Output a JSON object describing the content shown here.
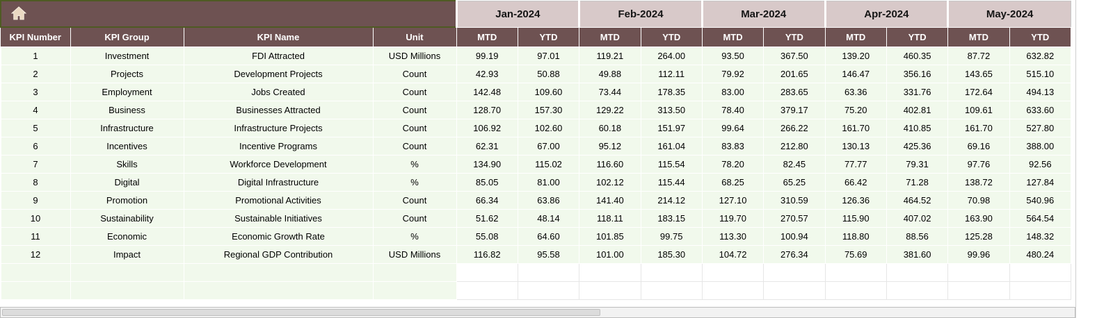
{
  "table": {
    "corner": {
      "icon": "home"
    },
    "column_headers": [
      "KPI Number",
      "KPI Group",
      "KPI Name",
      "Unit"
    ],
    "months": [
      "Jan-2024",
      "Feb-2024",
      "Mar-2024",
      "Apr-2024",
      "May-2024"
    ],
    "period_labels": {
      "mtd": "MTD",
      "ytd": "YTD"
    },
    "rows": [
      {
        "number": "1",
        "group": "Investment",
        "name": "FDI Attracted",
        "unit": "USD Millions",
        "values": [
          "99.19",
          "97.01",
          "119.21",
          "264.00",
          "93.50",
          "367.50",
          "139.20",
          "460.35",
          "87.72",
          "632.82"
        ]
      },
      {
        "number": "2",
        "group": "Projects",
        "name": "Development Projects",
        "unit": "Count",
        "values": [
          "42.93",
          "50.88",
          "49.88",
          "112.11",
          "79.92",
          "201.65",
          "146.47",
          "356.16",
          "143.65",
          "515.10"
        ]
      },
      {
        "number": "3",
        "group": "Employment",
        "name": "Jobs Created",
        "unit": "Count",
        "values": [
          "142.48",
          "109.60",
          "73.44",
          "178.35",
          "83.00",
          "283.65",
          "63.36",
          "331.76",
          "172.64",
          "494.13"
        ]
      },
      {
        "number": "4",
        "group": "Business",
        "name": "Businesses Attracted",
        "unit": "Count",
        "values": [
          "128.70",
          "157.30",
          "129.22",
          "313.50",
          "78.40",
          "379.17",
          "75.20",
          "402.81",
          "109.61",
          "633.60"
        ]
      },
      {
        "number": "5",
        "group": "Infrastructure",
        "name": "Infrastructure Projects",
        "unit": "Count",
        "values": [
          "106.92",
          "102.60",
          "60.18",
          "151.97",
          "99.64",
          "266.22",
          "161.70",
          "410.85",
          "161.70",
          "527.80"
        ]
      },
      {
        "number": "6",
        "group": "Incentives",
        "name": "Incentive Programs",
        "unit": "Count",
        "values": [
          "62.31",
          "67.00",
          "95.12",
          "161.04",
          "83.83",
          "212.80",
          "130.13",
          "425.36",
          "69.16",
          "388.00"
        ]
      },
      {
        "number": "7",
        "group": "Skills",
        "name": "Workforce Development",
        "unit": "%",
        "values": [
          "134.90",
          "115.02",
          "116.60",
          "115.54",
          "78.20",
          "82.45",
          "77.77",
          "79.31",
          "97.76",
          "92.56"
        ]
      },
      {
        "number": "8",
        "group": "Digital",
        "name": "Digital Infrastructure",
        "unit": "%",
        "values": [
          "85.05",
          "81.00",
          "102.12",
          "115.44",
          "68.25",
          "65.25",
          "66.42",
          "71.28",
          "138.72",
          "127.84"
        ]
      },
      {
        "number": "9",
        "group": "Promotion",
        "name": "Promotional Activities",
        "unit": "Count",
        "values": [
          "66.34",
          "63.86",
          "141.40",
          "214.12",
          "127.10",
          "310.59",
          "126.36",
          "464.52",
          "70.98",
          "540.96"
        ]
      },
      {
        "number": "10",
        "group": "Sustainability",
        "name": "Sustainable Initiatives",
        "unit": "Count",
        "values": [
          "51.62",
          "48.14",
          "118.11",
          "183.15",
          "119.70",
          "270.57",
          "115.90",
          "407.02",
          "163.90",
          "564.54"
        ]
      },
      {
        "number": "11",
        "group": "Economic",
        "name": "Economic Growth Rate",
        "unit": "%",
        "values": [
          "55.08",
          "64.60",
          "101.85",
          "99.75",
          "113.30",
          "100.94",
          "118.80",
          "88.56",
          "125.28",
          "148.32"
        ]
      },
      {
        "number": "12",
        "group": "Impact",
        "name": "Regional GDP Contribution",
        "unit": "USD Millions",
        "values": [
          "116.82",
          "95.58",
          "101.00",
          "185.30",
          "104.72",
          "276.34",
          "75.69",
          "381.60",
          "99.96",
          "480.24"
        ]
      }
    ],
    "empty_row_count": 2,
    "colors": {
      "header_brown": "#6e5252",
      "month_band_pink": "#d8c9c9",
      "row_light_green": "#f1f9ec",
      "corner_border_olive": "#4f5a23",
      "header_text": "#ffffff"
    }
  }
}
